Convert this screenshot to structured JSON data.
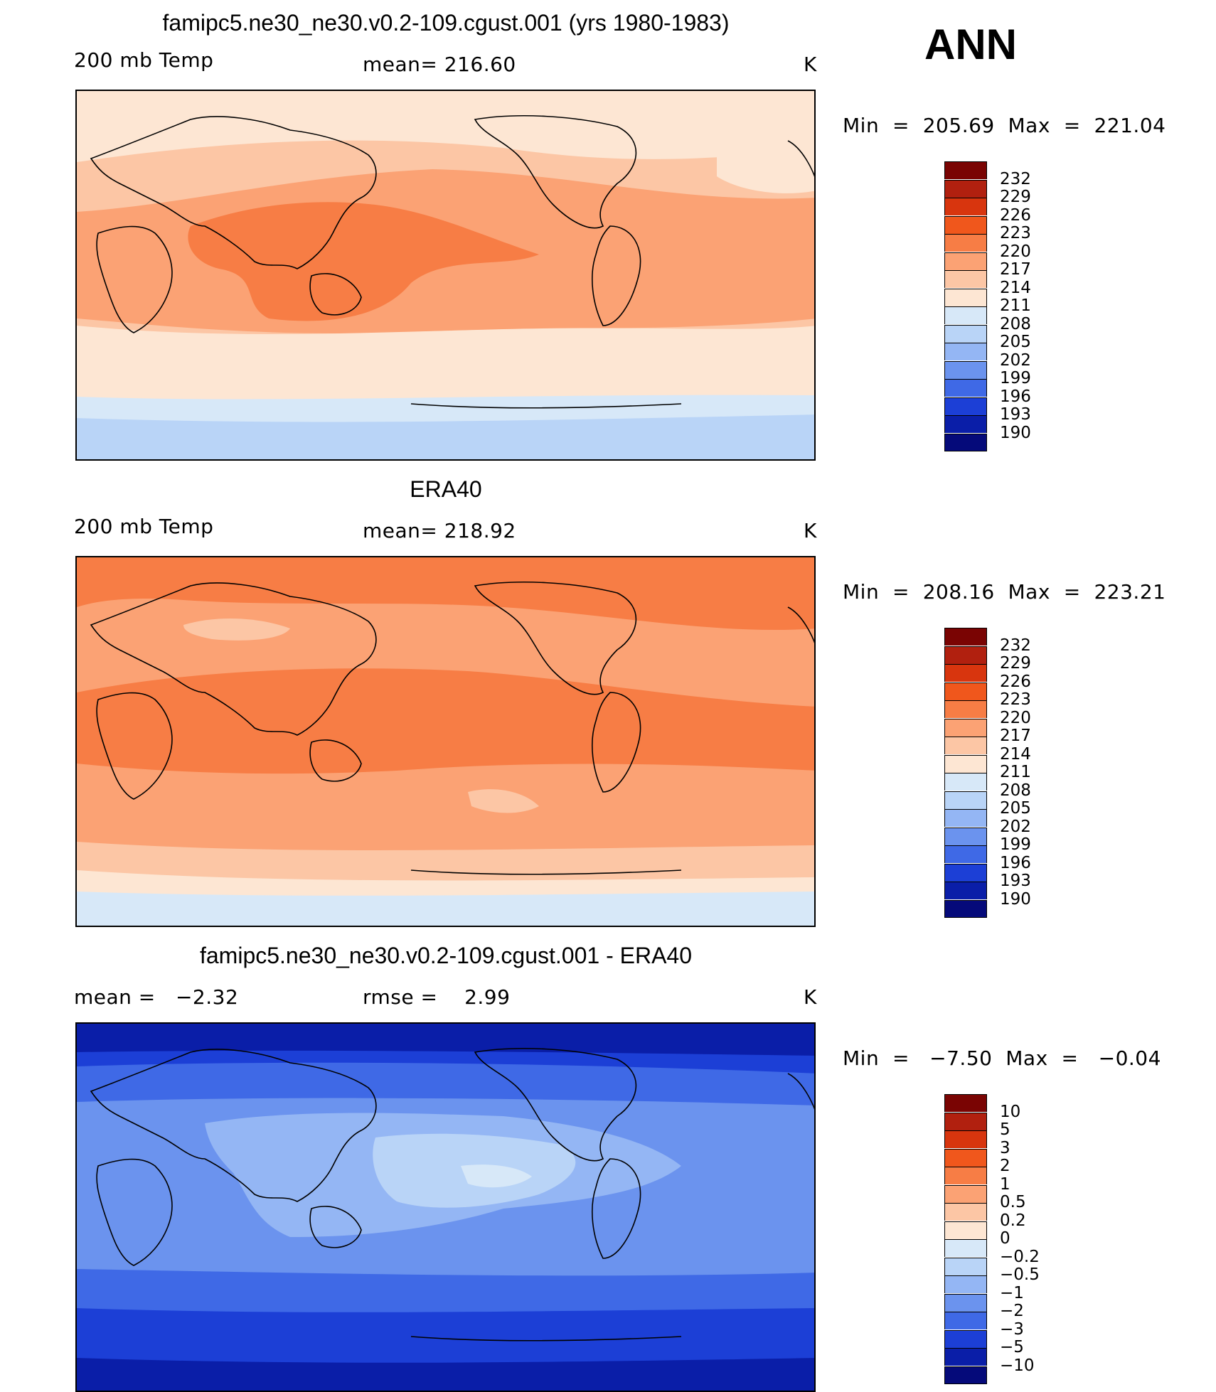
{
  "season": "ANN",
  "panels": [
    {
      "title": "famipc5.ne30_ne30.v0.2-109.cgust.001 (yrs 1980-1983)",
      "left_label": "200 mb Temp",
      "center_label": "mean= 216.60",
      "units": "K",
      "min_max": "Min  =  205.69  Max  =  221.04"
    },
    {
      "title": "ERA40",
      "left_label": "200 mb Temp",
      "center_label": "mean= 218.92",
      "units": "K",
      "min_max": "Min  =  208.16  Max  =  223.21"
    },
    {
      "title": "famipc5.ne30_ne30.v0.2-109.cgust.001 - ERA40",
      "left_label": "mean =   −2.32",
      "center_label": "rmse =    2.99",
      "units": "K",
      "min_max": "Min  =   −7.50  Max  =   −0.04"
    }
  ],
  "colorbars": {
    "temperature": {
      "labels": [
        "232",
        "229",
        "226",
        "223",
        "220",
        "217",
        "214",
        "211",
        "208",
        "205",
        "202",
        "199",
        "196",
        "193",
        "190"
      ],
      "colors": [
        "#7a0403",
        "#b1200f",
        "#d8350e",
        "#f0571c",
        "#f77d45",
        "#fba274",
        "#fcc6a5",
        "#fde6d3",
        "#d7e8f8",
        "#b9d4f7",
        "#94b6f4",
        "#6b93ee",
        "#3f69e6",
        "#1c3fd6",
        "#0a1ea8",
        "#050a7a"
      ]
    },
    "difference": {
      "labels": [
        "10",
        "5",
        "3",
        "2",
        "1",
        "0.5",
        "0.2",
        "0",
        "−0.2",
        "−0.5",
        "−1",
        "−2",
        "−3",
        "−5",
        "−10"
      ],
      "colors": [
        "#7a0403",
        "#b1200f",
        "#d8350e",
        "#f0571c",
        "#f77d45",
        "#fba274",
        "#fcc6a5",
        "#fde6d3",
        "#d7e8f8",
        "#b9d4f7",
        "#94b6f4",
        "#6b93ee",
        "#3f69e6",
        "#1c3fd6",
        "#0a1ea8",
        "#050a7a"
      ]
    }
  },
  "map_style": {
    "model_colors": [
      "#fde6d3",
      "#fcc6a5",
      "#fba274",
      "#f77d45",
      "#fcc6a5",
      "#fde6d3",
      "#d7e8f8",
      "#b9d4f7"
    ],
    "era_colors": [
      "#fba274",
      "#f77d45",
      "#fba274",
      "#f77d45",
      "#fba274",
      "#fcc6a5",
      "#fde6d3",
      "#d7e8f8"
    ],
    "diff_colors": [
      "#1c3fd6",
      "#3f69e6",
      "#6b93ee",
      "#94b6f4",
      "#b9d4f7",
      "#94b6f4",
      "#6b93ee",
      "#3f69e6",
      "#1c3fd6"
    ]
  }
}
